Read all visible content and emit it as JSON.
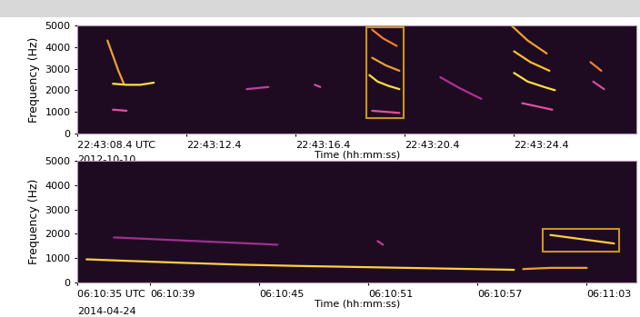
{
  "chart_data": [
    {
      "type": "spectrogram",
      "date": "2012-10-10",
      "x_label": "Time (hh:mm:ss)",
      "y_label": "Frequency (Hz)",
      "xlim": [
        0,
        20.5
      ],
      "ylim": [
        0,
        5000
      ],
      "xticks": [
        {
          "value": 0,
          "label": "22:43:08.4 UTC"
        },
        {
          "value": 4,
          "label": "22:43:12.4"
        },
        {
          "value": 8,
          "label": "22:43:16.4"
        },
        {
          "value": 12,
          "label": "22:43:20.4"
        },
        {
          "value": 16,
          "label": "22:43:24.4"
        }
      ],
      "yticks": [
        0,
        1000,
        2000,
        3000,
        4000,
        5000
      ],
      "series": [
        {
          "x": [
            1.1,
            1.3,
            1.5,
            1.7
          ],
          "values": [
            4300,
            3600,
            2900,
            2300
          ],
          "color": "#f0a030"
        },
        {
          "x": [
            1.3,
            1.8,
            2.3,
            2.8
          ],
          "values": [
            2300,
            2250,
            2250,
            2350
          ],
          "color": "#ffe040"
        },
        {
          "x": [
            1.3,
            1.8
          ],
          "values": [
            1100,
            1050
          ],
          "color": "#e050a0"
        },
        {
          "x": [
            6.2,
            6.6,
            7.0
          ],
          "values": [
            2050,
            2100,
            2150
          ],
          "color": "#c040a0"
        },
        {
          "x": [
            8.7,
            8.9
          ],
          "values": [
            2250,
            2150
          ],
          "color": "#d050a0"
        },
        {
          "x": [
            10.8,
            11.2,
            11.7
          ],
          "values": [
            4800,
            4400,
            4050
          ],
          "color": "#f08030"
        },
        {
          "x": [
            10.8,
            11.3,
            11.8
          ],
          "values": [
            3500,
            3150,
            2900
          ],
          "color": "#f0a030"
        },
        {
          "x": [
            10.7,
            11.0,
            11.4,
            11.8
          ],
          "values": [
            2700,
            2400,
            2200,
            2050
          ],
          "color": "#ffe040"
        },
        {
          "x": [
            10.8,
            11.8
          ],
          "values": [
            1050,
            950
          ],
          "color": "#e050a0"
        },
        {
          "x": [
            13.3,
            14.0,
            14.8
          ],
          "values": [
            2600,
            2100,
            1600
          ],
          "color": "#b03090"
        },
        {
          "x": [
            15.9,
            16.5,
            17.2
          ],
          "values": [
            5000,
            4300,
            3700
          ],
          "color": "#f0a030"
        },
        {
          "x": [
            16.0,
            16.6,
            17.3
          ],
          "values": [
            3800,
            3300,
            2900
          ],
          "color": "#ffc030"
        },
        {
          "x": [
            16.0,
            16.5,
            17.1,
            17.5
          ],
          "values": [
            2800,
            2400,
            2150,
            2000
          ],
          "color": "#ffe040"
        },
        {
          "x": [
            16.3,
            17.4
          ],
          "values": [
            1400,
            1100
          ],
          "color": "#e050a0"
        },
        {
          "x": [
            18.8,
            19.2
          ],
          "values": [
            3300,
            2900
          ],
          "color": "#f08030"
        },
        {
          "x": [
            18.9,
            19.3
          ],
          "values": [
            2400,
            2050
          ],
          "color": "#d050a0"
        }
      ],
      "selection": {
        "x": [
          10.6,
          11.95
        ],
        "y": [
          700,
          4900
        ],
        "color": "#c8961e"
      }
    },
    {
      "type": "spectrogram",
      "date": "2014-04-24",
      "x_label": "Time (hh:mm:ss)",
      "y_label": "Frequency (Hz)",
      "xlim": [
        0,
        30.75
      ],
      "ylim": [
        0,
        5000
      ],
      "xticks": [
        {
          "value": 0,
          "label": "06:10:35 UTC"
        },
        {
          "value": 4,
          "label": "06:10:39"
        },
        {
          "value": 10,
          "label": "06:10:45"
        },
        {
          "value": 16,
          "label": "06:10:51"
        },
        {
          "value": 22,
          "label": "06:10:57"
        },
        {
          "value": 28,
          "label": "06:11:03"
        }
      ],
      "yticks": [
        0,
        1000,
        2000,
        3000,
        4000,
        5000
      ],
      "series": [
        {
          "x": [
            0.5,
            3,
            6,
            9,
            12,
            15,
            18,
            21,
            24
          ],
          "values": [
            950,
            880,
            800,
            730,
            680,
            640,
            600,
            560,
            520
          ],
          "color": "#ffd040"
        },
        {
          "x": [
            2,
            5,
            8,
            11
          ],
          "values": [
            1850,
            1750,
            1650,
            1550
          ],
          "color": "#a03090"
        },
        {
          "x": [
            16.5,
            16.8
          ],
          "values": [
            1700,
            1550
          ],
          "color": "#c04090"
        },
        {
          "x": [
            24.5,
            26,
            28
          ],
          "values": [
            550,
            600,
            600
          ],
          "color": "#f0a030"
        },
        {
          "x": [
            26.0,
            27.5,
            29.5
          ],
          "values": [
            1950,
            1800,
            1600
          ],
          "color": "#ffd040"
        }
      ],
      "selection": {
        "x": [
          25.6,
          29.8
        ],
        "y": [
          1250,
          2200
        ],
        "color": "#c8961e"
      }
    }
  ]
}
